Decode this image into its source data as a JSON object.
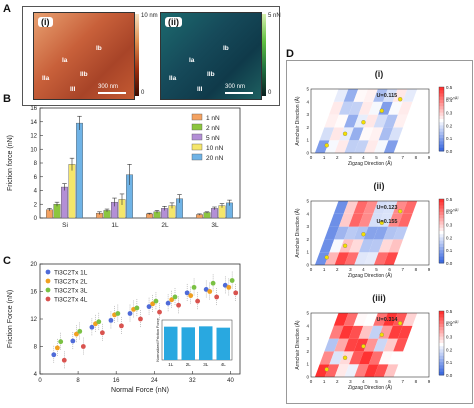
{
  "panel_labels": {
    "A": "A",
    "B": "B",
    "C": "C",
    "D": "D"
  },
  "panelA": {
    "left": {
      "tag": "(i)",
      "regions": [
        "Ia",
        "Ib",
        "IIa",
        "IIb",
        "III"
      ],
      "scale": "300 nm",
      "cbar_max": "10 nm",
      "cbar_min": "0"
    },
    "right": {
      "tag": "(ii)",
      "regions": [
        "Ia",
        "Ib",
        "IIa",
        "IIb",
        "III"
      ],
      "scale": "300 nm",
      "cbar_max": "5 nN",
      "cbar_min": "0"
    }
  },
  "colors": {
    "1nN": "#f4a261",
    "2nN": "#8cc63f",
    "5nN": "#b38fd6",
    "10nN": "#f5e66b",
    "20nN": "#6fb3e6",
    "Ti3C2Tx_1L": "#4f6bd8",
    "Ti3C2Tx_2L": "#f0a020",
    "Ti3C2Tx_3L": "#7ac143",
    "Ti3C2Tx_4L": "#d9534f",
    "inset_bar": "#29a8e0"
  },
  "chart_data": [
    {
      "type": "bar",
      "panel": "B",
      "categories": [
        "Si",
        "1L",
        "2L",
        "3L"
      ],
      "ylabel": "Friction force (nN)",
      "ylim": [
        0,
        16
      ],
      "yticks": [
        0,
        2,
        4,
        6,
        8,
        10,
        12,
        14,
        16
      ],
      "legend": "top-right",
      "series": [
        {
          "name": "1 nN",
          "values": [
            1.2,
            0.7,
            0.6,
            0.5
          ],
          "err": [
            0.2,
            0.2,
            0.1,
            0.1
          ]
        },
        {
          "name": "2 nN",
          "values": [
            2.0,
            1.1,
            0.9,
            0.8
          ],
          "err": [
            0.3,
            0.2,
            0.2,
            0.1
          ]
        },
        {
          "name": "5 nN",
          "values": [
            4.5,
            2.3,
            1.4,
            1.4
          ],
          "err": [
            0.5,
            0.6,
            0.3,
            0.2
          ]
        },
        {
          "name": "10 nN",
          "values": [
            7.8,
            2.7,
            1.8,
            1.8
          ],
          "err": [
            0.9,
            0.8,
            0.4,
            0.3
          ]
        },
        {
          "name": "20 nN",
          "values": [
            13.8,
            6.3,
            2.8,
            2.2
          ],
          "err": [
            1.0,
            1.5,
            0.6,
            0.4
          ]
        }
      ]
    },
    {
      "type": "scatter",
      "panel": "C",
      "xlabel": "Normal Force (nN)",
      "ylabel": "Friction Force (nN)",
      "xlim": [
        0,
        42
      ],
      "ylim": [
        4,
        20
      ],
      "xticks": [
        0,
        8,
        16,
        24,
        32,
        40
      ],
      "yticks": [
        4,
        8,
        12,
        16,
        20
      ],
      "legend": "top-left",
      "x": [
        4,
        8,
        12,
        16,
        20,
        24,
        28,
        32,
        36,
        40
      ],
      "series": [
        {
          "name": "Ti3C2Tx 1L",
          "values": [
            6.8,
            8.8,
            10.8,
            11.8,
            12.8,
            13.8,
            14.3,
            15.8,
            16.3,
            16.9
          ]
        },
        {
          "name": "Ti3C2Tx 2L",
          "values": [
            7.8,
            9.8,
            11.3,
            12.6,
            13.4,
            14.2,
            14.8,
            15.4,
            16.0,
            16.6
          ]
        },
        {
          "name": "Ti3C2Tx 3L",
          "values": [
            8.7,
            10.2,
            11.6,
            12.8,
            13.6,
            14.6,
            15.2,
            16.6,
            17.2,
            17.6
          ]
        },
        {
          "name": "Ti3C2Tx 4L",
          "values": [
            6.0,
            8.0,
            10.0,
            11.0,
            12.0,
            13.0,
            14.0,
            14.6,
            15.2,
            15.8
          ]
        }
      ],
      "inset": {
        "type": "bar",
        "ylabel": "Normalized Friction Force",
        "categories": [
          "1L",
          "2L",
          "3L",
          "4L"
        ],
        "values": [
          1.0,
          0.98,
          1.01,
          0.97
        ],
        "ylim": [
          0,
          1.2
        ]
      }
    },
    {
      "type": "heatmap",
      "panel": "D",
      "subpanels": [
        {
          "tag": "(i)",
          "label": "U=0.115",
          "xlabel": "Zigzag Direction (Å)",
          "ylabel": "Armchair Direction (Å)",
          "cbar_unit": "meV/Å²",
          "cbar_ticks": [
            "0.5",
            "0.4",
            "0.3",
            "0.2",
            "0.1",
            "0.0"
          ]
        },
        {
          "tag": "(ii)",
          "labels": [
            "U=0.123",
            "U=0.155"
          ],
          "xlabel": "Zigzag Direction (Å)",
          "ylabel": "Armchair Direction (Å)",
          "cbar_unit": "meV/Å²",
          "cbar_ticks": [
            "0.5",
            "0.4",
            "0.3",
            "0.2",
            "0.1",
            "0.0"
          ]
        },
        {
          "tag": "(iii)",
          "label": "U=0.314",
          "xlabel": "Zigzag Direction (Å)",
          "ylabel": "Armchair Direction (Å)",
          "cbar_unit": "meV/Å²",
          "cbar_ticks": [
            "0.5",
            "0.4",
            "0.3",
            "0.2",
            "0.1",
            "0.0"
          ]
        }
      ],
      "xticks": [
        0,
        1,
        2,
        3,
        4,
        5,
        6,
        7,
        8,
        9
      ],
      "yticks": [
        0,
        1,
        2,
        3,
        4,
        5
      ]
    }
  ]
}
